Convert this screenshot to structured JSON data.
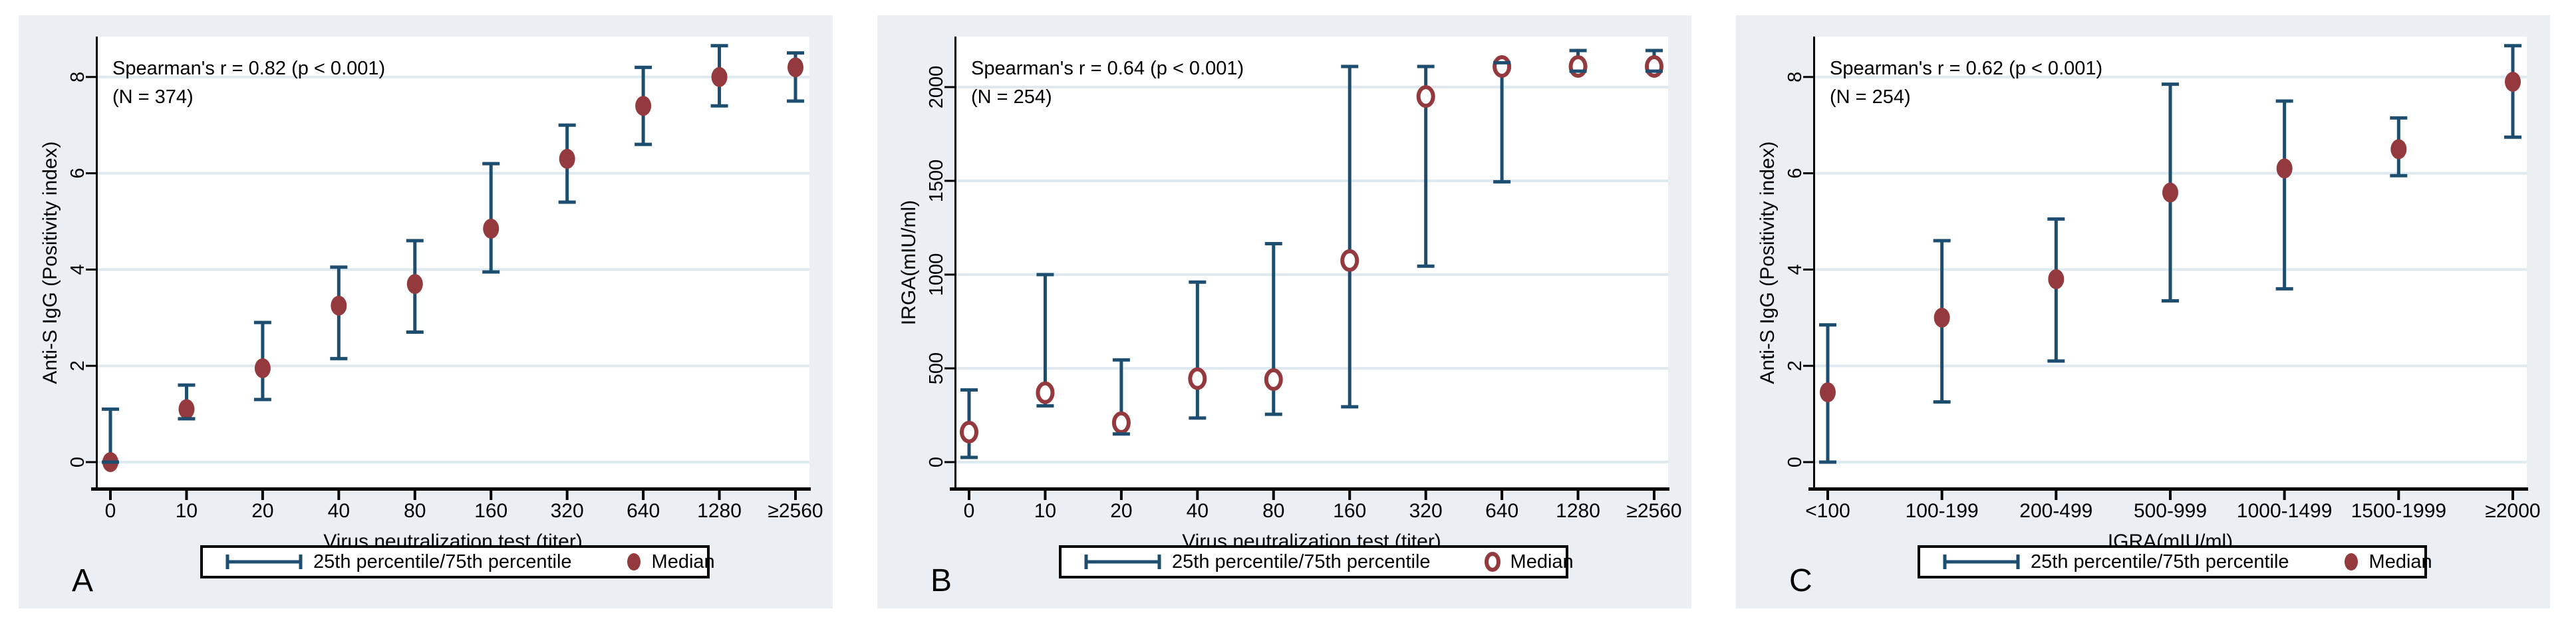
{
  "legend": {
    "range_label": "25th percentile/75th percentile",
    "median_label": "Median",
    "range_icon": "error-bar-glyph",
    "median_icon_filled": "filled-dot",
    "median_icon_open": "open-ring"
  },
  "colors": {
    "background": "#ffffff",
    "panel_background": "#e9eff3",
    "plot_background": "#ffffff",
    "gridline": "#dfeaf0",
    "axis": "#000000",
    "error_bar": "#1d4d6f",
    "median": "#943a3e",
    "legend_border": "#000000"
  },
  "chart_data": [
    {
      "type": "scatter",
      "panel_letter": "A",
      "annotation": {
        "line1": "Spearman's r = 0.82 (p < 0.001)",
        "line2": "(N = 374)"
      },
      "xlabel": "Virus neutralization test (titer)",
      "ylabel": "Anti-S IgG (Positivity index)",
      "y_ticks": [
        0,
        2,
        4,
        6,
        8
      ],
      "ylim": [
        0,
        8.8
      ],
      "grid": true,
      "legend_position": "bottom",
      "median_marker": "filled",
      "categories": [
        "0",
        "10",
        "20",
        "40",
        "80",
        "160",
        "320",
        "640",
        "1280",
        "≥2560"
      ],
      "series": [
        {
          "name": "Median",
          "values": [
            0.0,
            1.1,
            1.95,
            3.25,
            3.7,
            4.85,
            6.3,
            7.4,
            8.0,
            8.2
          ]
        },
        {
          "name": "25th percentile",
          "values": [
            0.0,
            0.9,
            1.3,
            2.15,
            2.7,
            3.95,
            5.4,
            6.6,
            7.4,
            7.5
          ]
        },
        {
          "name": "75th percentile",
          "values": [
            1.1,
            1.6,
            2.9,
            4.05,
            4.6,
            6.2,
            7.0,
            8.2,
            8.65,
            8.5
          ]
        }
      ]
    },
    {
      "type": "scatter",
      "panel_letter": "B",
      "annotation": {
        "line1": "Spearman's r = 0.64 (p < 0.001)",
        "line2": "(N = 254)"
      },
      "xlabel": "Virus neutralization test (titer)",
      "ylabel": "IRGA(mIU/ml)",
      "y_ticks": [
        0,
        500,
        1000,
        1500,
        2000
      ],
      "ylim": [
        0,
        2270
      ],
      "grid": true,
      "legend_position": "bottom",
      "median_marker": "open",
      "categories": [
        "0",
        "10",
        "20",
        "40",
        "80",
        "160",
        "320",
        "640",
        "1280",
        "≥2560"
      ],
      "series": [
        {
          "name": "Median",
          "values": [
            160,
            370,
            210,
            445,
            440,
            1075,
            1950,
            2110,
            2110,
            2110
          ]
        },
        {
          "name": "25th percentile",
          "values": [
            25,
            300,
            150,
            235,
            255,
            295,
            1045,
            1495,
            2085,
            2085
          ]
        },
        {
          "name": "75th percentile",
          "values": [
            385,
            1000,
            545,
            960,
            1165,
            2110,
            2110,
            2130,
            2195,
            2195
          ]
        }
      ]
    },
    {
      "type": "scatter",
      "panel_letter": "C",
      "annotation": {
        "line1": "Spearman's r = 0.62 (p < 0.001)",
        "line2": "(N = 254)"
      },
      "xlabel": "IGRA(mIU/ml)",
      "ylabel": "Anti-S IgG (Positivity index)",
      "y_ticks": [
        0,
        2,
        4,
        6,
        8
      ],
      "ylim": [
        0,
        8.8
      ],
      "grid": true,
      "legend_position": "bottom",
      "median_marker": "filled",
      "categories": [
        "<100",
        "100-199",
        "200-499",
        "500-999",
        "1000-1499",
        "1500-1999",
        "≥2000"
      ],
      "series": [
        {
          "name": "Median",
          "values": [
            1.45,
            3.0,
            3.8,
            5.6,
            6.1,
            6.5,
            7.9
          ]
        },
        {
          "name": "25th percentile",
          "values": [
            0.0,
            1.25,
            2.1,
            3.35,
            3.6,
            5.95,
            6.75
          ]
        },
        {
          "name": "75th percentile",
          "values": [
            2.85,
            4.6,
            5.05,
            7.85,
            7.5,
            7.15,
            8.65
          ]
        }
      ]
    }
  ]
}
